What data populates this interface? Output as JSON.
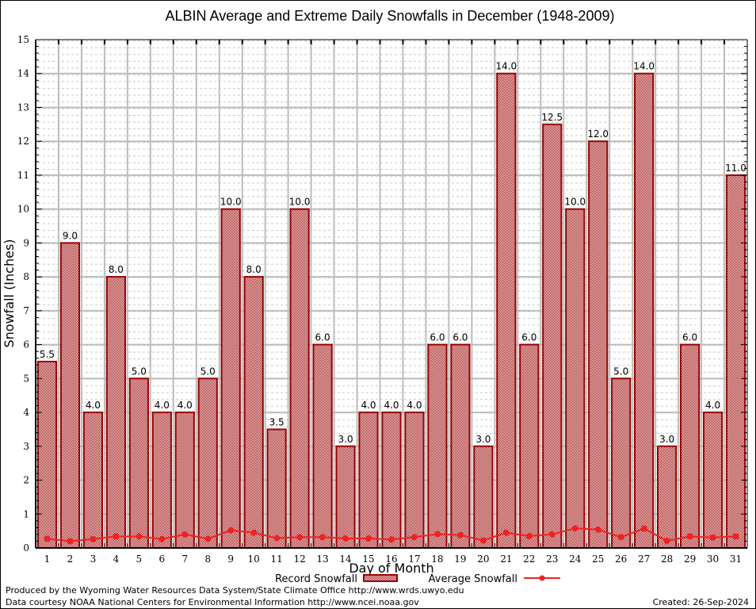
{
  "chart_data": {
    "type": "bar",
    "title": "ALBIN Average and Extreme Daily Snowfalls in December (1948-2009)",
    "xlabel": "Day of Month",
    "ylabel": "Snowfall (Inches)",
    "ylim": [
      0,
      15
    ],
    "yticks": [
      "0",
      "1",
      "2",
      "3",
      "4",
      "5",
      "6",
      "7",
      "8",
      "9",
      "10",
      "11",
      "12",
      "13",
      "14",
      "15"
    ],
    "grid": true,
    "categories": [
      "1",
      "2",
      "3",
      "4",
      "5",
      "6",
      "7",
      "8",
      "9",
      "10",
      "11",
      "12",
      "13",
      "14",
      "15",
      "16",
      "17",
      "18",
      "19",
      "20",
      "21",
      "22",
      "23",
      "24",
      "25",
      "26",
      "27",
      "28",
      "29",
      "30",
      "31"
    ],
    "series": [
      {
        "name": "Record Snowfall",
        "kind": "bar",
        "color": "#990000",
        "values": [
          5.5,
          9.0,
          4.0,
          8.0,
          5.0,
          4.0,
          4.0,
          5.0,
          10.0,
          8.0,
          3.5,
          10.0,
          6.0,
          3.0,
          4.0,
          4.0,
          4.0,
          6.0,
          6.0,
          3.0,
          14.0,
          6.0,
          12.5,
          10.0,
          12.0,
          5.0,
          14.0,
          3.0,
          6.0,
          4.0,
          11.0
        ],
        "labels": [
          "5.5",
          "9.0",
          "4.0",
          "8.0",
          "5.0",
          "4.0",
          "4.0",
          "5.0",
          "10.0",
          "8.0",
          "3.5",
          "10.0",
          "6.0",
          "3.0",
          "4.0",
          "4.0",
          "4.0",
          "6.0",
          "6.0",
          "3.0",
          "14.0",
          "6.0",
          "12.5",
          "10.0",
          "12.0",
          "5.0",
          "14.0",
          "3.0",
          "6.0",
          "4.0",
          "11.0"
        ]
      },
      {
        "name": "Average Snowfall",
        "kind": "line",
        "color": "#ee2222",
        "values": [
          0.27,
          0.2,
          0.26,
          0.34,
          0.34,
          0.26,
          0.4,
          0.27,
          0.52,
          0.45,
          0.29,
          0.32,
          0.32,
          0.28,
          0.28,
          0.25,
          0.32,
          0.41,
          0.38,
          0.22,
          0.45,
          0.35,
          0.4,
          0.58,
          0.54,
          0.32,
          0.57,
          0.21,
          0.34,
          0.31,
          0.34
        ]
      }
    ],
    "legend": {
      "placement": "bottom-center",
      "items": [
        "Record Snowfall",
        "Average Snowfall"
      ]
    }
  },
  "footer": {
    "line1": "Produced by the Wyoming Water Resources Data System/State Climate Office http://www.wrds.uwyo.edu",
    "line2": "Data courtesy NOAA National Centers for Environmental Information http://www.ncei.noaa.gov",
    "created": "Created: 26-Sep-2024"
  }
}
